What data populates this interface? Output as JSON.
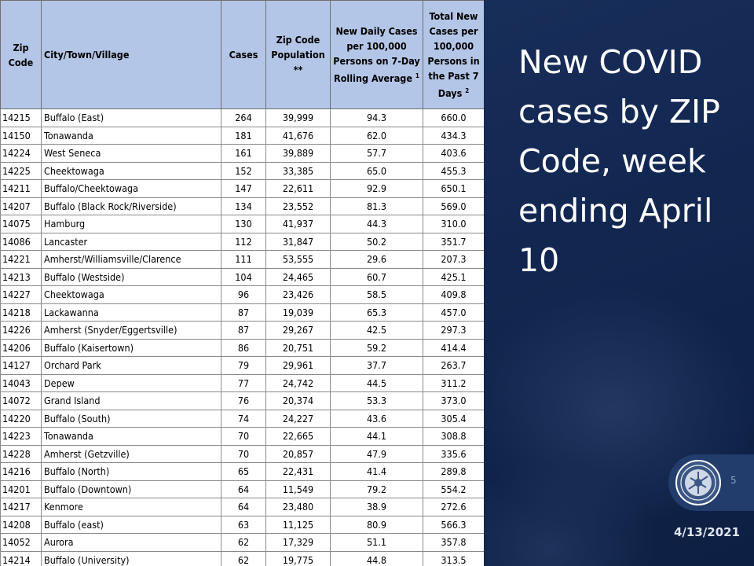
{
  "title": "New COVID cases by ZIP Code, week ending April 10",
  "page_number": "5",
  "date": "4/13/2021",
  "table": {
    "headers": {
      "zip": "Zip Code",
      "city": "City/Town/Village",
      "cases": "Cases",
      "population": "Zip Code Population",
      "population_mark": "**",
      "daily": "New Daily Cases per 100,000 Persons on 7-Day Rolling Average",
      "daily_note": "1",
      "total": "Total New Cases per 100,000 Persons in the Past 7 Days",
      "total_note": "2"
    },
    "rows": [
      {
        "zip": "14215",
        "city": "Buffalo (East)",
        "cases": "264",
        "population": "39,999",
        "daily": "94.3",
        "total": "660.0"
      },
      {
        "zip": "14150",
        "city": "Tonawanda",
        "cases": "181",
        "population": "41,676",
        "daily": "62.0",
        "total": "434.3"
      },
      {
        "zip": "14224",
        "city": "West Seneca",
        "cases": "161",
        "population": "39,889",
        "daily": "57.7",
        "total": "403.6"
      },
      {
        "zip": "14225",
        "city": "Cheektowaga",
        "cases": "152",
        "population": "33,385",
        "daily": "65.0",
        "total": "455.3"
      },
      {
        "zip": "14211",
        "city": "Buffalo/Cheektowaga",
        "cases": "147",
        "population": "22,611",
        "daily": "92.9",
        "total": "650.1"
      },
      {
        "zip": "14207",
        "city": "Buffalo (Black Rock/Riverside)",
        "cases": "134",
        "population": "23,552",
        "daily": "81.3",
        "total": "569.0"
      },
      {
        "zip": "14075",
        "city": "Hamburg",
        "cases": "130",
        "population": "41,937",
        "daily": "44.3",
        "total": "310.0"
      },
      {
        "zip": "14086",
        "city": "Lancaster",
        "cases": "112",
        "population": "31,847",
        "daily": "50.2",
        "total": "351.7"
      },
      {
        "zip": "14221",
        "city": "Amherst/Williamsville/Clarence",
        "cases": "111",
        "population": "53,555",
        "daily": "29.6",
        "total": "207.3"
      },
      {
        "zip": "14213",
        "city": "Buffalo (Westside)",
        "cases": "104",
        "population": "24,465",
        "daily": "60.7",
        "total": "425.1"
      },
      {
        "zip": "14227",
        "city": "Cheektowaga",
        "cases": "96",
        "population": "23,426",
        "daily": "58.5",
        "total": "409.8"
      },
      {
        "zip": "14218",
        "city": "Lackawanna",
        "cases": "87",
        "population": "19,039",
        "daily": "65.3",
        "total": "457.0"
      },
      {
        "zip": "14226",
        "city": "Amherst (Snyder/Eggertsville)",
        "cases": "87",
        "population": "29,267",
        "daily": "42.5",
        "total": "297.3"
      },
      {
        "zip": "14206",
        "city": "Buffalo (Kaisertown)",
        "cases": "86",
        "population": "20,751",
        "daily": "59.2",
        "total": "414.4"
      },
      {
        "zip": "14127",
        "city": "Orchard Park",
        "cases": "79",
        "population": "29,961",
        "daily": "37.7",
        "total": "263.7"
      },
      {
        "zip": "14043",
        "city": "Depew",
        "cases": "77",
        "population": "24,742",
        "daily": "44.5",
        "total": "311.2"
      },
      {
        "zip": "14072",
        "city": "Grand Island",
        "cases": "76",
        "population": "20,374",
        "daily": "53.3",
        "total": "373.0"
      },
      {
        "zip": "14220",
        "city": "Buffalo (South)",
        "cases": "74",
        "population": "24,227",
        "daily": "43.6",
        "total": "305.4"
      },
      {
        "zip": "14223",
        "city": "Tonawanda",
        "cases": "70",
        "population": "22,665",
        "daily": "44.1",
        "total": "308.8"
      },
      {
        "zip": "14228",
        "city": "Amherst (Getzville)",
        "cases": "70",
        "population": "20,857",
        "daily": "47.9",
        "total": "335.6"
      },
      {
        "zip": "14216",
        "city": "Buffalo (North)",
        "cases": "65",
        "population": "22,431",
        "daily": "41.4",
        "total": "289.8"
      },
      {
        "zip": "14201",
        "city": "Buffalo (Downtown)",
        "cases": "64",
        "population": "11,549",
        "daily": "79.2",
        "total": "554.2"
      },
      {
        "zip": "14217",
        "city": "Kenmore",
        "cases": "64",
        "population": "23,480",
        "daily": "38.9",
        "total": "272.6"
      },
      {
        "zip": "14208",
        "city": "Buffalo (east)",
        "cases": "63",
        "population": "11,125",
        "daily": "80.9",
        "total": "566.3"
      },
      {
        "zip": "14052",
        "city": "Aurora",
        "cases": "62",
        "population": "17,329",
        "daily": "51.1",
        "total": "357.8"
      },
      {
        "zip": "14214",
        "city": "Buffalo (University)",
        "cases": "62",
        "population": "19,775",
        "daily": "44.8",
        "total": "313.5"
      }
    ]
  },
  "colors": {
    "header_fill": "#b4c6e7",
    "slide_background": "#132852",
    "title_text": "#ffffff"
  },
  "seal_icon": "county-seal-icon"
}
